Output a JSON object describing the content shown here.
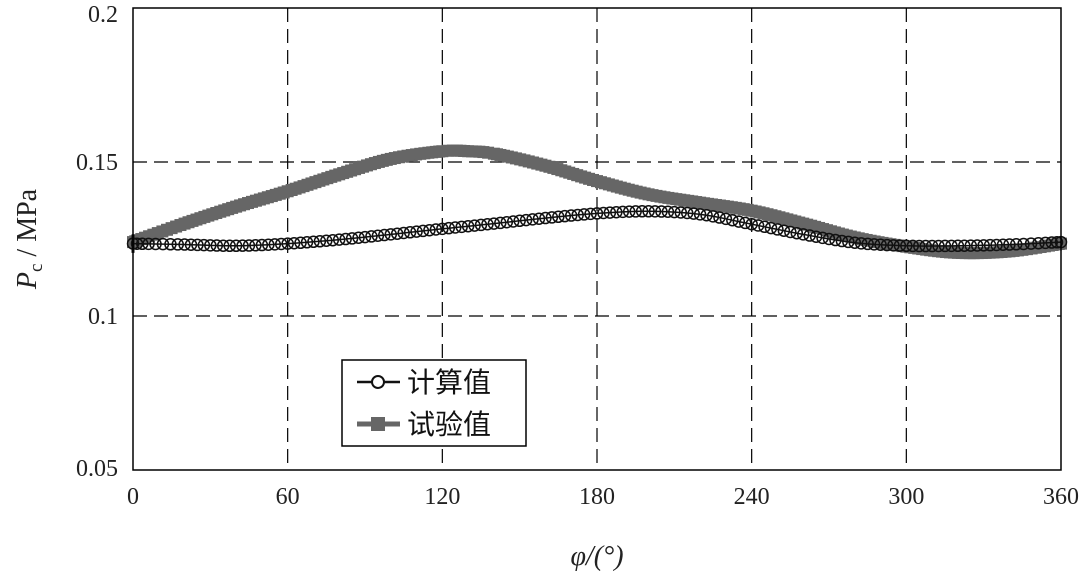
{
  "chart_data": {
    "type": "line",
    "xlabel": "φ/(°)",
    "ylabel": "P_c / MPa",
    "xlim": [
      0,
      360
    ],
    "ylim": [
      0.05,
      0.2
    ],
    "x_ticks": [
      "0",
      "60",
      "120",
      "180",
      "240",
      "300",
      "360"
    ],
    "y_ticks": [
      "0.05",
      "0.1",
      "0.15",
      "0.2"
    ],
    "grid": true,
    "legend_position": "lower-left",
    "series": [
      {
        "name": "计算值",
        "marker": "open-circle",
        "color": "#111111",
        "x": [
          0,
          20,
          40,
          60,
          80,
          100,
          120,
          140,
          160,
          180,
          200,
          220,
          240,
          260,
          280,
          300,
          320,
          340,
          360
        ],
        "y": [
          0.1235,
          0.1232,
          0.1228,
          0.1235,
          0.1248,
          0.1265,
          0.1283,
          0.13,
          0.1318,
          0.1333,
          0.134,
          0.133,
          0.1298,
          0.1265,
          0.1238,
          0.1228,
          0.1228,
          0.1232,
          0.124
        ]
      },
      {
        "name": "试验值",
        "marker": "filled-square",
        "color": "#666666",
        "x": [
          0,
          20,
          40,
          60,
          80,
          100,
          120,
          130,
          140,
          160,
          180,
          200,
          220,
          240,
          260,
          280,
          300,
          320,
          340,
          360
        ],
        "y": [
          0.124,
          0.13,
          0.1355,
          0.1405,
          0.146,
          0.151,
          0.1535,
          0.1535,
          0.1527,
          0.1488,
          0.1438,
          0.1395,
          0.1368,
          0.1342,
          0.13,
          0.1255,
          0.1225,
          0.1205,
          0.121,
          0.1235
        ]
      }
    ]
  }
}
